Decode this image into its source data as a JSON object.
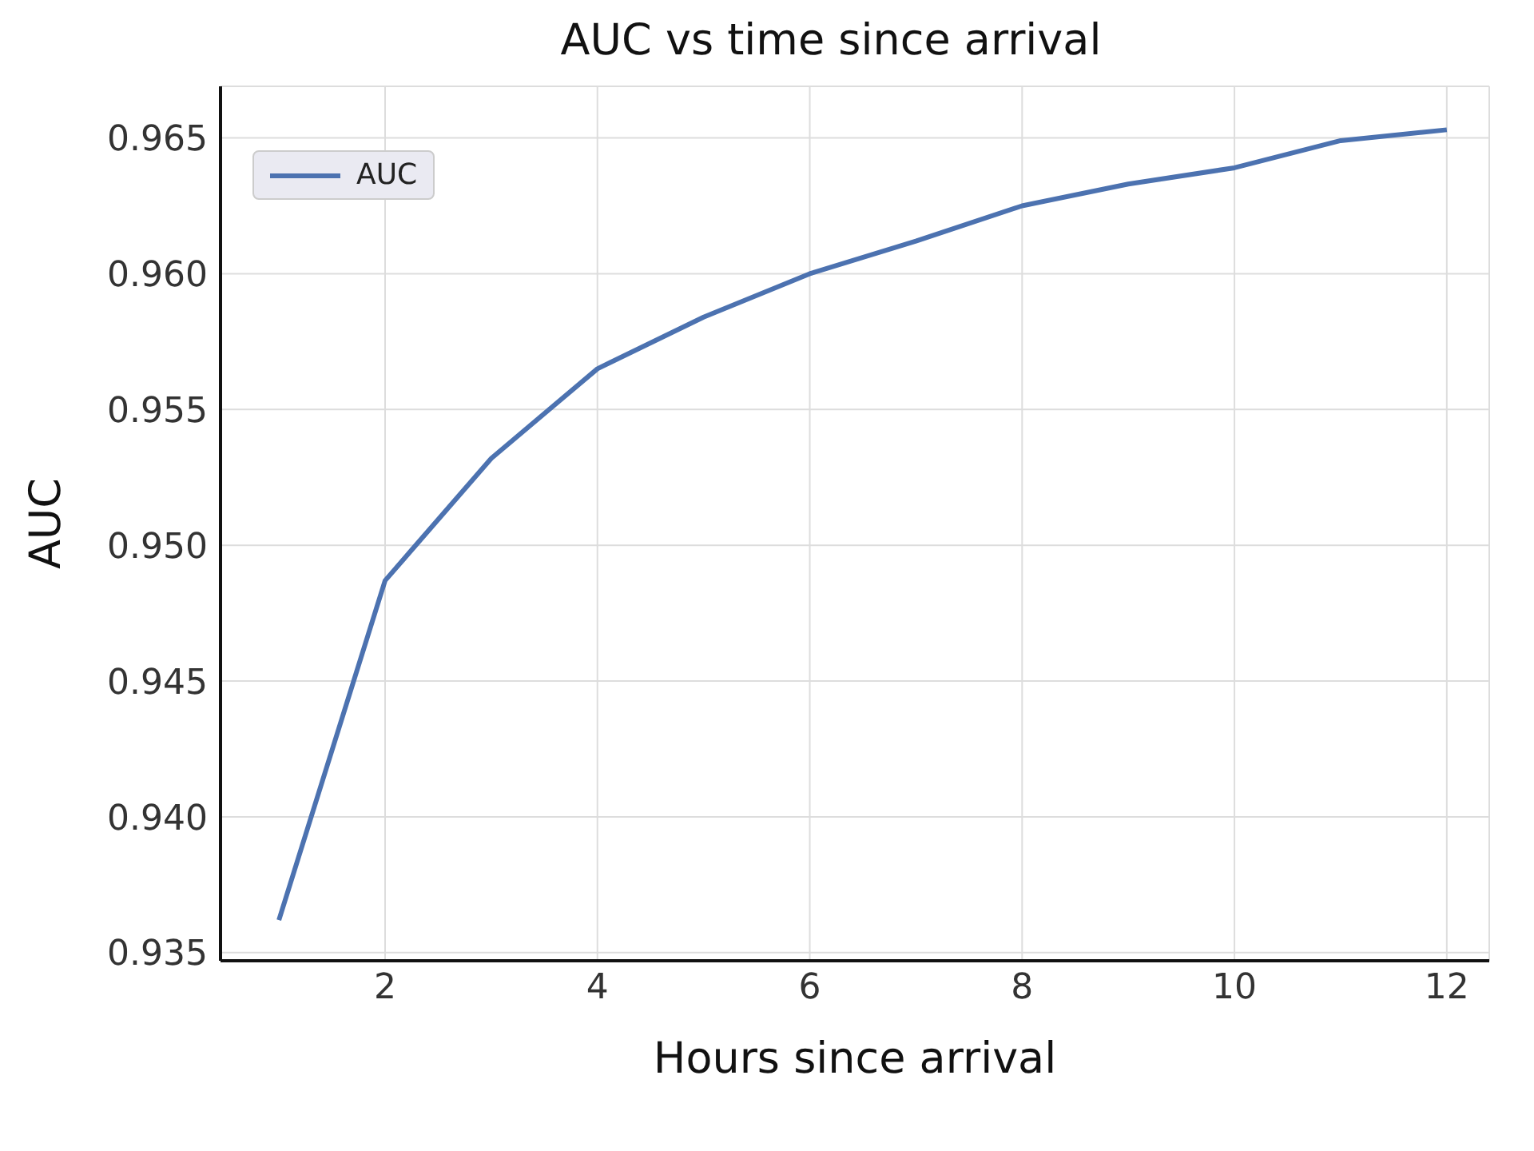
{
  "chart_data": {
    "type": "line",
    "title": "AUC vs time since arrival",
    "xlabel": "Hours since arrival",
    "ylabel": "AUC",
    "x": [
      1,
      2,
      3,
      4,
      5,
      6,
      7,
      8,
      9,
      10,
      11,
      12
    ],
    "series": [
      {
        "name": "AUC",
        "color": "#4c72b0",
        "values": [
          0.9362,
          0.9487,
          0.9532,
          0.9565,
          0.9584,
          0.96,
          0.9612,
          0.9625,
          0.9633,
          0.9639,
          0.9649,
          0.9653
        ]
      }
    ],
    "xlim": [
      0.45,
      12.4
    ],
    "xticks": [
      2,
      4,
      6,
      8,
      10,
      12
    ],
    "ylim": [
      0.9347,
      0.9669
    ],
    "yticks": [
      {
        "value": 0.935,
        "label": "0.935"
      },
      {
        "value": 0.94,
        "label": "0.940"
      },
      {
        "value": 0.945,
        "label": "0.945"
      },
      {
        "value": 0.95,
        "label": "0.950"
      },
      {
        "value": 0.955,
        "label": "0.955"
      },
      {
        "value": 0.96,
        "label": "0.960"
      },
      {
        "value": 0.965,
        "label": "0.965"
      }
    ],
    "grid": true,
    "legend": "top left",
    "marker": "none",
    "line_style": "solid"
  }
}
